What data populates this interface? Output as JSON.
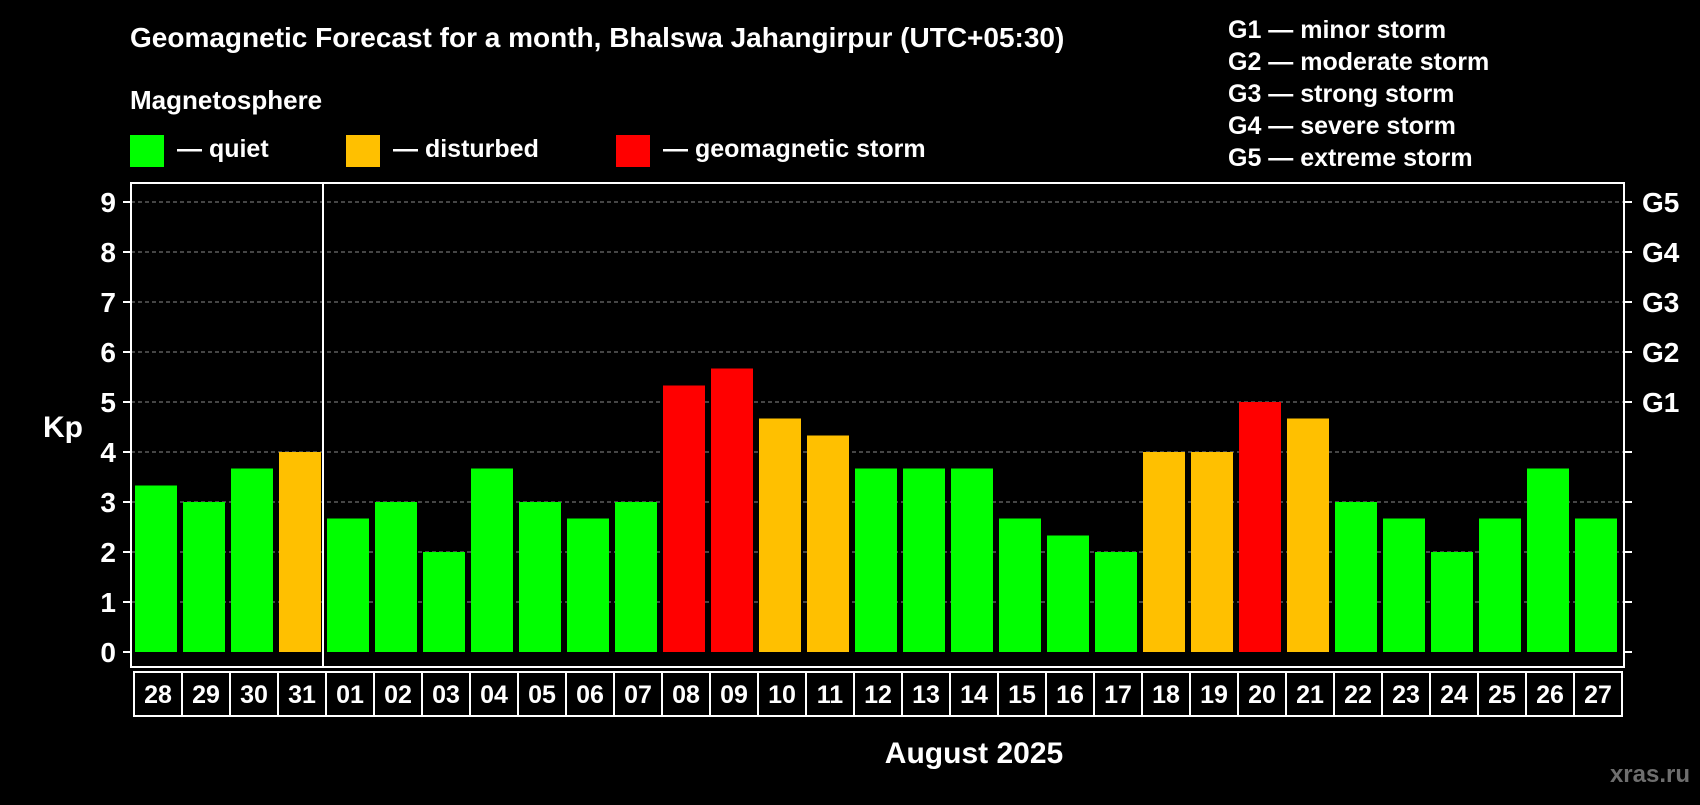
{
  "chart_data": {
    "type": "bar",
    "title": "Geomagnetic Forecast for a month, Bhalswa Jahangirpur (UTC+05:30)",
    "legend_title": "Magnetosphere",
    "legend": [
      {
        "label": "— quiet",
        "color": "#00ff00"
      },
      {
        "label": "— disturbed",
        "color": "#ffc000"
      },
      {
        "label": "— geomagnetic storm",
        "color": "#ff0000"
      }
    ],
    "g_scale": [
      "G1 — minor storm",
      "G2 — moderate storm",
      "G3 — strong storm",
      "G4 — severe storm",
      "G5 — extreme storm"
    ],
    "ylabel": "Kp",
    "xlabel": "August 2025",
    "ylim": [
      0,
      9
    ],
    "yticks": [
      "0",
      "1",
      "2",
      "3",
      "4",
      "5",
      "6",
      "7",
      "8",
      "9"
    ],
    "right_ticks": [
      {
        "value": 5,
        "label": "G1"
      },
      {
        "value": 6,
        "label": "G2"
      },
      {
        "value": 7,
        "label": "G3"
      },
      {
        "value": 8,
        "label": "G4"
      },
      {
        "value": 9,
        "label": "G5"
      }
    ],
    "month_boundary_after_index": 3,
    "categories": [
      "28",
      "29",
      "30",
      "31",
      "01",
      "02",
      "03",
      "04",
      "05",
      "06",
      "07",
      "08",
      "09",
      "10",
      "11",
      "12",
      "13",
      "14",
      "15",
      "16",
      "17",
      "18",
      "19",
      "20",
      "21",
      "22",
      "23",
      "24",
      "25",
      "26",
      "27"
    ],
    "values": [
      3.33,
      3.0,
      3.67,
      4.0,
      2.67,
      3.0,
      2.0,
      3.67,
      3.0,
      2.67,
      3.0,
      5.33,
      5.67,
      4.67,
      4.33,
      3.67,
      3.67,
      3.67,
      2.67,
      2.33,
      2.0,
      4.0,
      4.0,
      5.0,
      4.67,
      3.0,
      2.67,
      2.0,
      2.67,
      3.67,
      2.67
    ],
    "status": [
      "quiet",
      "quiet",
      "quiet",
      "disturbed",
      "quiet",
      "quiet",
      "quiet",
      "quiet",
      "quiet",
      "quiet",
      "quiet",
      "storm",
      "storm",
      "disturbed",
      "disturbed",
      "quiet",
      "quiet",
      "quiet",
      "quiet",
      "quiet",
      "quiet",
      "disturbed",
      "disturbed",
      "storm",
      "disturbed",
      "quiet",
      "quiet",
      "quiet",
      "quiet",
      "quiet",
      "quiet"
    ],
    "status_colors": {
      "quiet": "#00ff00",
      "disturbed": "#ffc000",
      "storm": "#ff0000"
    }
  },
  "watermark": "xras.ru"
}
